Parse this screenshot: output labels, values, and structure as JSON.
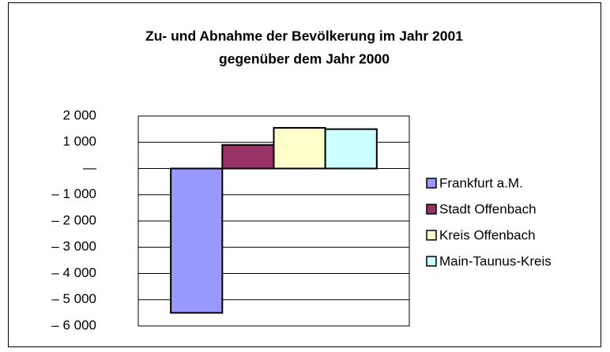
{
  "chart_data": {
    "type": "bar",
    "title": [
      "Zu- und Abnahme der Bevölkerung im Jahr 2001",
      "gegenüber dem Jahr 2000"
    ],
    "categories": [
      null
    ],
    "series": [
      {
        "name": "Frankfurt a.M.",
        "color": "#9999ff",
        "values": [
          -5500
        ]
      },
      {
        "name": "Stadt Offenbach",
        "color": "#993366",
        "values": [
          900
        ]
      },
      {
        "name": "Kreis Offenbach",
        "color": "#ffffcc",
        "values": [
          1550
        ]
      },
      {
        "name": "Main-Taunus-Kreis",
        "color": "#ccffff",
        "values": [
          1500
        ]
      }
    ],
    "ylim": [
      -6000,
      2000
    ],
    "yticks": [
      {
        "value": 2000,
        "label": "2 000"
      },
      {
        "value": 1000,
        "label": "1 000"
      },
      {
        "value": 0,
        "label": "—"
      },
      {
        "value": -1000,
        "label": "– 1 000"
      },
      {
        "value": -2000,
        "label": "– 2 000"
      },
      {
        "value": -3000,
        "label": "– 3 000"
      },
      {
        "value": -4000,
        "label": "– 4 000"
      },
      {
        "value": -5000,
        "label": "– 5 000"
      },
      {
        "value": -6000,
        "label": "– 6 000"
      }
    ],
    "grid": true,
    "legend": "right"
  }
}
